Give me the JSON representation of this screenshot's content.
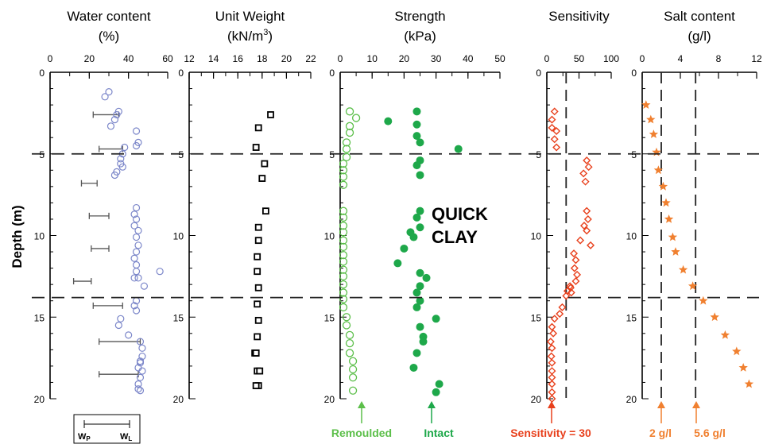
{
  "y_axis_label": "Depth (m)",
  "depth_ticks": [
    0,
    5,
    10,
    15,
    20
  ],
  "quick_clay_label": [
    "QUICK",
    "CLAY"
  ],
  "legend": {
    "wp": "W",
    "wp_sub": "P",
    "wl": "W",
    "wl_sub": "L"
  },
  "colors": {
    "water": "#7b86c9",
    "weight": "#000000",
    "remoulded": "#5cbf4a",
    "intact": "#1ea84a",
    "sensitivity": "#e8401c",
    "salt": "#f08030",
    "salt_label": "#f08030",
    "sens_label": "#e8401c"
  },
  "chart_data": [
    {
      "type": "scatter",
      "title": [
        "Water content",
        "(%)"
      ],
      "xticks": [
        0,
        20,
        40,
        60
      ],
      "xlim": [
        0,
        60
      ],
      "ylim": [
        0,
        20
      ],
      "series": [
        {
          "name": "",
          "marker": "circle",
          "x": [
            30,
            28,
            35,
            34,
            33,
            31,
            44,
            45,
            44,
            38,
            37,
            36,
            36,
            37,
            34,
            33,
            44,
            43,
            44,
            43,
            45,
            44,
            45,
            44,
            43,
            44,
            44,
            43,
            56,
            45,
            48,
            44,
            43,
            44,
            36,
            35,
            40,
            46,
            47,
            47,
            46,
            47,
            46,
            45,
            45,
            46,
            45,
            46
          ],
          "y": [
            1.2,
            1.5,
            2.4,
            2.6,
            2.9,
            3.3,
            3.6,
            4.3,
            4.5,
            4.6,
            5.0,
            5.3,
            5.6,
            5.8,
            6.1,
            6.3,
            8.3,
            8.7,
            9.0,
            9.4,
            9.7,
            10.1,
            10.6,
            11.0,
            11.4,
            11.8,
            12.2,
            12.6,
            12.2,
            12.6,
            13.1,
            14.0,
            14.3,
            14.6,
            15.1,
            15.5,
            16.1,
            16.5,
            16.9,
            17.4,
            17.8,
            18.3,
            18.7,
            19.1,
            19.4,
            17.7,
            18.1,
            19.5
          ]
        }
      ],
      "range_bars": [
        {
          "depth": 2.6,
          "wp": 22,
          "wl": 35
        },
        {
          "depth": 4.7,
          "wp": 25,
          "wl": 37
        },
        {
          "depth": 6.8,
          "wp": 16,
          "wl": 24
        },
        {
          "depth": 8.8,
          "wp": 20,
          "wl": 30
        },
        {
          "depth": 10.8,
          "wp": 21,
          "wl": 30
        },
        {
          "depth": 12.8,
          "wp": 12,
          "wl": 21
        },
        {
          "depth": 14.3,
          "wp": 22,
          "wl": 37
        },
        {
          "depth": 16.5,
          "wp": 25,
          "wl": 46
        },
        {
          "depth": 18.5,
          "wp": 25,
          "wl": 45
        }
      ]
    },
    {
      "type": "scatter",
      "title": [
        "Unit Weight",
        "(kN/m",
        "3",
        ")"
      ],
      "xticks": [
        12,
        14,
        16,
        18,
        20,
        22
      ],
      "xlim": [
        12,
        22
      ],
      "ylim": [
        0,
        20
      ],
      "series": [
        {
          "name": "",
          "marker": "square",
          "x": [
            18.7,
            17.7,
            17.5,
            18.2,
            18.0,
            18.3,
            17.7,
            17.7,
            17.6,
            17.6,
            17.7,
            17.6,
            17.7,
            17.6,
            17.5,
            17.6,
            17.7,
            17.8,
            17.5,
            17.4,
            17.5
          ],
          "y": [
            2.6,
            3.4,
            4.6,
            5.6,
            6.5,
            8.5,
            9.5,
            10.3,
            11.3,
            12.2,
            13.2,
            14.2,
            15.2,
            16.2,
            17.2,
            18.3,
            19.2,
            18.3,
            19.2,
            17.2,
            17.2
          ]
        }
      ]
    },
    {
      "type": "scatter",
      "title": [
        "Strength",
        "(kPa)"
      ],
      "xticks": [
        0,
        10,
        20,
        30,
        40,
        50
      ],
      "xlim": [
        0,
        50
      ],
      "ylim": [
        0,
        20
      ],
      "series": [
        {
          "name": "Remoulded",
          "marker": "open-circle",
          "x": [
            3,
            5,
            3,
            3,
            2,
            2,
            2,
            1,
            1,
            1,
            1,
            1,
            1,
            1,
            1,
            1,
            1,
            1,
            1,
            1,
            1,
            1,
            1,
            1,
            1,
            2,
            2,
            3,
            3,
            3,
            4,
            4,
            4,
            4
          ],
          "y": [
            2.4,
            2.8,
            3.3,
            3.7,
            4.3,
            4.7,
            5.2,
            5.6,
            6.0,
            6.4,
            6.9,
            8.5,
            8.9,
            9.4,
            9.8,
            10.3,
            10.7,
            11.2,
            11.6,
            12.1,
            12.5,
            13.0,
            13.5,
            13.9,
            14.4,
            15.0,
            15.5,
            16.1,
            16.6,
            17.2,
            17.7,
            18.2,
            18.7,
            19.5
          ]
        },
        {
          "name": "Intact",
          "marker": "filled-circle",
          "x": [
            24,
            24,
            15,
            24,
            25,
            37,
            25,
            24,
            25,
            25,
            24,
            25,
            22,
            23,
            20,
            18,
            25,
            27,
            25,
            24,
            25,
            24,
            30,
            25,
            26,
            26,
            24,
            23,
            31,
            30
          ],
          "y": [
            2.4,
            3.2,
            3.0,
            3.9,
            4.3,
            4.7,
            5.4,
            5.7,
            6.3,
            8.5,
            8.9,
            9.5,
            9.8,
            10.1,
            10.8,
            11.7,
            12.3,
            12.6,
            13.1,
            13.5,
            14.0,
            14.4,
            15.1,
            15.6,
            16.2,
            16.5,
            17.2,
            18.1,
            19.1,
            19.6
          ]
        }
      ]
    },
    {
      "type": "scatter",
      "title": [
        "Sensitivity"
      ],
      "xticks": [
        0,
        50,
        100
      ],
      "xlim": [
        0,
        100
      ],
      "ylim": [
        0,
        20
      ],
      "reference_line_x": 30,
      "series": [
        {
          "name": "",
          "marker": "diamond",
          "x": [
            12,
            8,
            8,
            15,
            12,
            15,
            62,
            65,
            57,
            60,
            62,
            64,
            58,
            62,
            52,
            68,
            42,
            45,
            43,
            47,
            45,
            37,
            38,
            36,
            32,
            30,
            24,
            20,
            12,
            8,
            10,
            6,
            8,
            7,
            8,
            8,
            8,
            8,
            8,
            8
          ],
          "y": [
            2.4,
            2.9,
            3.4,
            3.6,
            4.1,
            4.6,
            5.4,
            5.8,
            6.2,
            6.7,
            8.5,
            9.0,
            9.4,
            9.7,
            10.3,
            10.6,
            11.1,
            11.5,
            12.0,
            12.4,
            12.8,
            13.2,
            13.5,
            13.1,
            13.4,
            13.7,
            14.4,
            14.8,
            15.1,
            15.6,
            16.0,
            16.5,
            16.9,
            17.4,
            17.8,
            18.3,
            18.7,
            19.1,
            19.6,
            20.0
          ]
        }
      ]
    },
    {
      "type": "scatter",
      "title": [
        "Salt content",
        "(g/l)"
      ],
      "xticks": [
        0,
        4,
        8,
        12
      ],
      "xlim": [
        0,
        12
      ],
      "ylim": [
        0,
        20
      ],
      "reference_lines_x": [
        2,
        5.6
      ],
      "series": [
        {
          "name": "",
          "marker": "star",
          "x": [
            0.4,
            0.9,
            1.2,
            1.5,
            1.7,
            2.2,
            2.5,
            2.8,
            3.2,
            3.5,
            4.3,
            5.3,
            6.4,
            7.6,
            8.7,
            9.9,
            10.6,
            11.2
          ],
          "y": [
            2.0,
            2.9,
            3.8,
            4.9,
            6.0,
            7.0,
            8.0,
            9.0,
            10.1,
            11.0,
            12.1,
            13.1,
            14.0,
            15.0,
            16.1,
            17.1,
            18.1,
            19.1
          ]
        }
      ]
    }
  ],
  "bottom_labels": {
    "remoulded": "Remoulded",
    "intact": "Intact",
    "sensitivity": "Sensitivity = 30",
    "salt_a": "2 g/l",
    "salt_b": "5.6 g/l"
  }
}
